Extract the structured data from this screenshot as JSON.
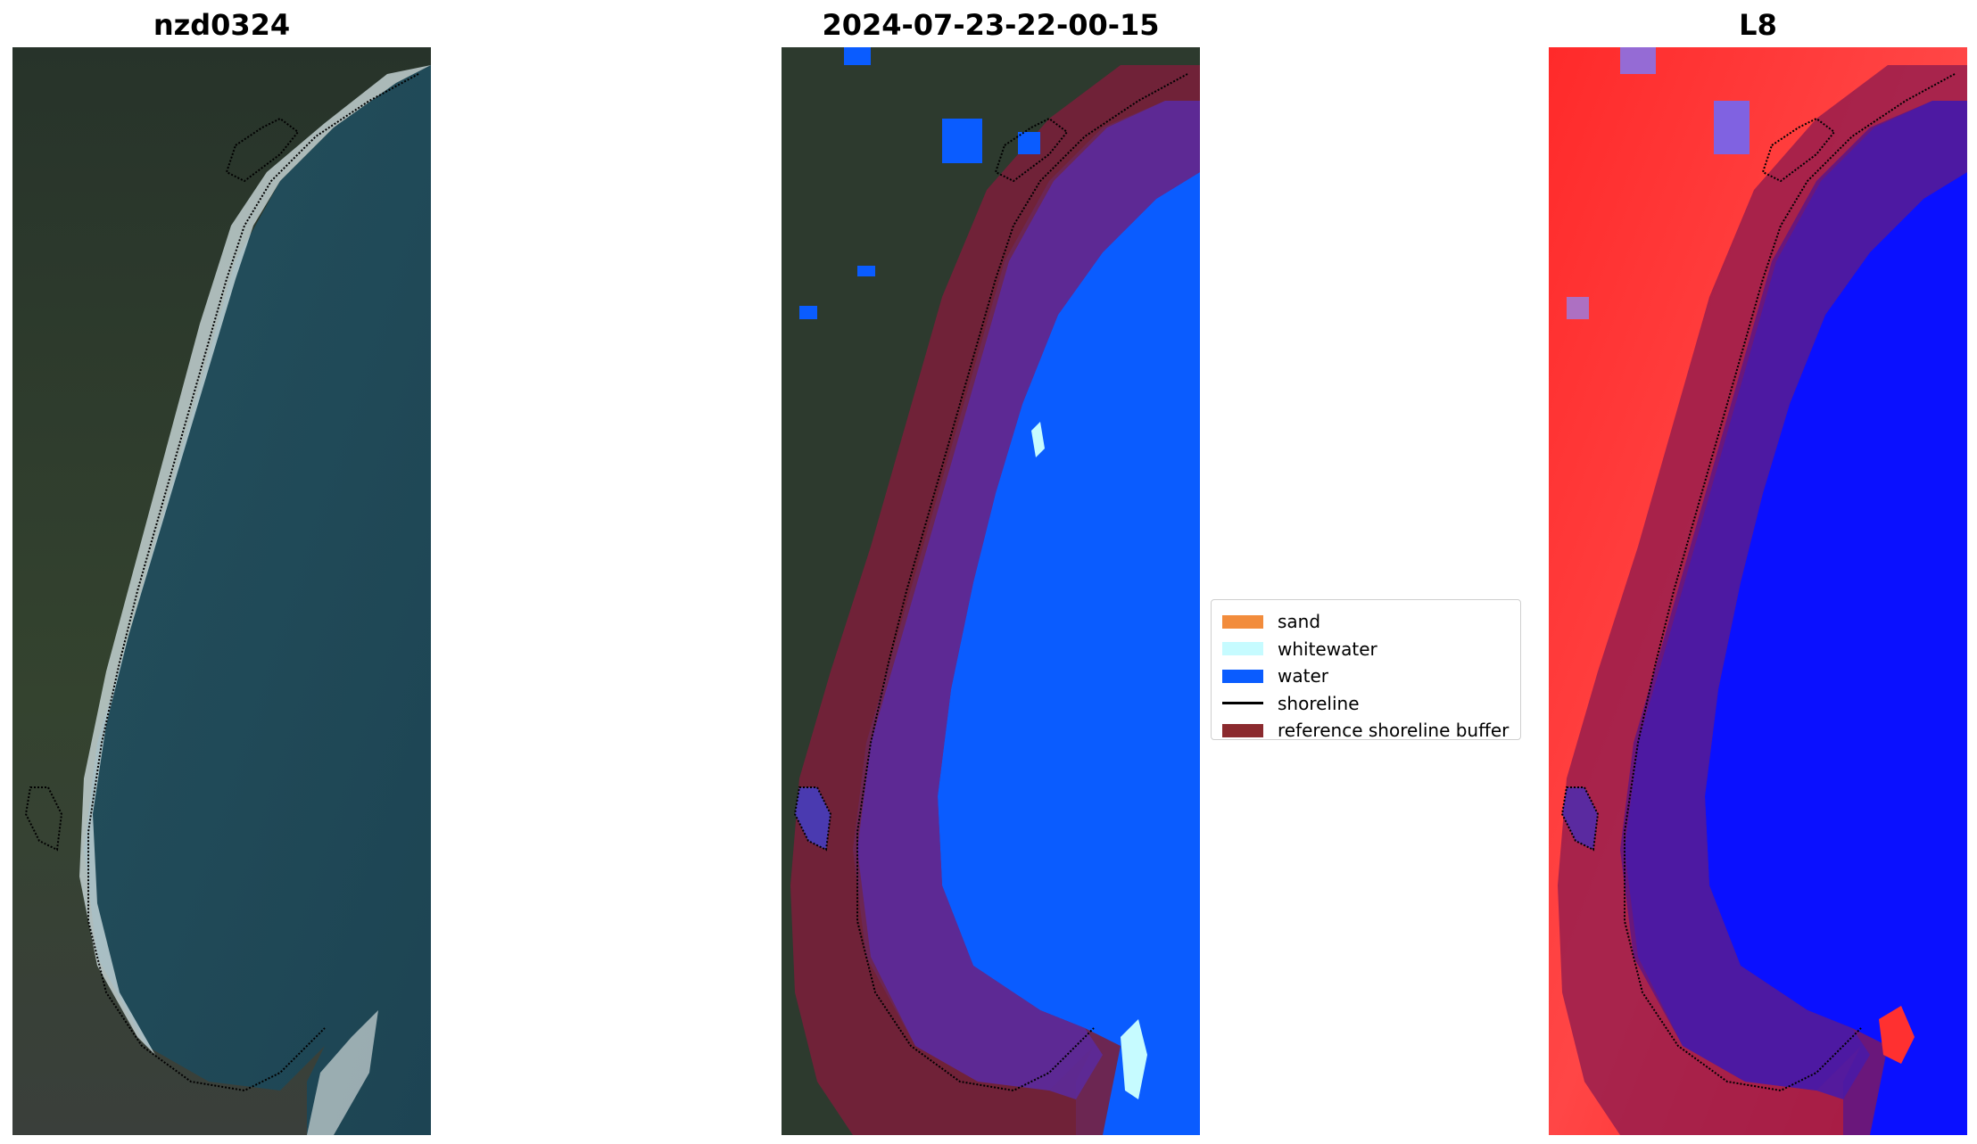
{
  "panels": [
    {
      "title": "nzd0324"
    },
    {
      "title": "2024-07-23-22-00-15"
    },
    {
      "title": "L8"
    }
  ],
  "legend": {
    "items": [
      {
        "label": "sand",
        "color": "#f28c3c",
        "kind": "patch"
      },
      {
        "label": "whitewater",
        "color": "#c6fbff",
        "kind": "patch"
      },
      {
        "label": "water",
        "color": "#0a5cff",
        "kind": "patch"
      },
      {
        "label": "shoreline",
        "color": "#000000",
        "kind": "line"
      },
      {
        "label": "reference shoreline buffer",
        "color": "#8b2a2e",
        "kind": "patch"
      }
    ]
  },
  "colors": {
    "land": "#2b3a2c",
    "sea": "#1f4f5e",
    "water_class": "#0a5cff",
    "buffer": "#7a1f3a",
    "index_land": "#ff2020",
    "index_water": "#0a10ff"
  }
}
